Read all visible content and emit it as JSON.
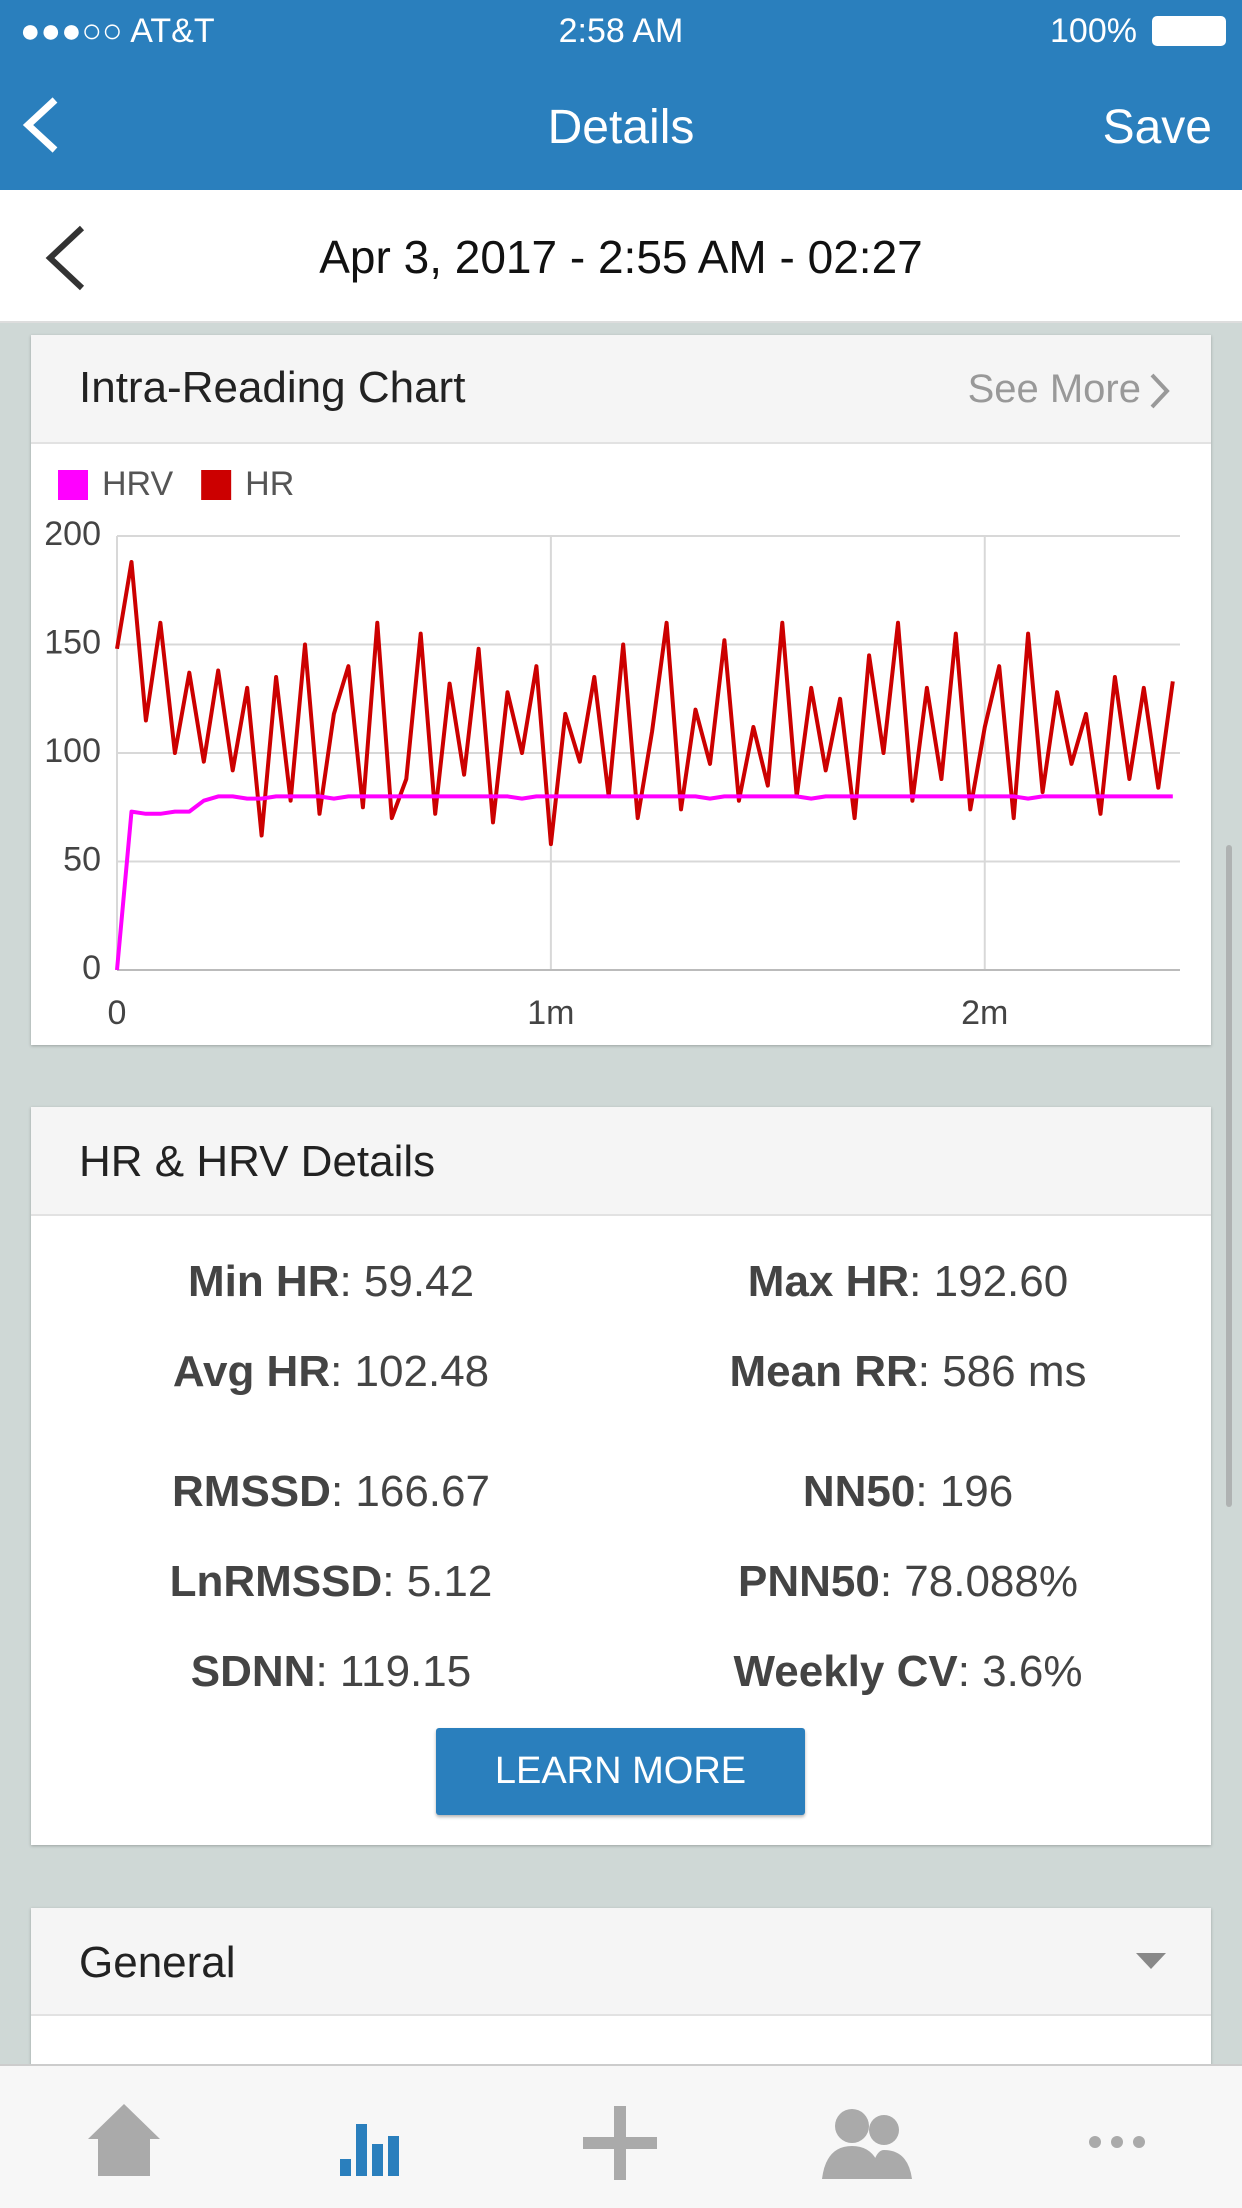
{
  "status_bar": {
    "carrier": "●●●○○ AT&T",
    "time": "2:58 AM",
    "battery": "100%"
  },
  "nav": {
    "title": "Details",
    "action": "Save"
  },
  "date_bar": {
    "text": "Apr 3, 2017 - 2:55 AM - 02:27"
  },
  "chart_card": {
    "link": "See More"
  },
  "chart_data": {
    "type": "line",
    "title": "Intra-Reading Chart",
    "x": [
      0,
      2,
      4,
      6,
      8,
      10,
      12,
      14,
      16,
      18,
      20,
      22,
      24,
      26,
      28,
      30,
      32,
      34,
      36,
      38,
      40,
      42,
      44,
      46,
      48,
      50,
      52,
      54,
      56,
      58,
      60,
      62,
      64,
      66,
      68,
      70,
      72,
      74,
      76,
      78,
      80,
      82,
      84,
      86,
      88,
      90,
      92,
      94,
      96,
      98,
      100,
      102,
      104,
      106,
      108,
      110,
      112,
      114,
      116,
      118,
      120,
      122,
      124,
      126,
      128,
      130,
      132,
      134,
      136,
      138,
      140,
      142,
      144,
      146
    ],
    "series": [
      {
        "name": "HRV",
        "color": "#ff00ff",
        "values": [
          0,
          73,
          72,
          72,
          73,
          73,
          78,
          80,
          80,
          79,
          79,
          80,
          80,
          80,
          80,
          79,
          80,
          80,
          80,
          80,
          80,
          80,
          80,
          80,
          80,
          80,
          80,
          80,
          79,
          80,
          80,
          80,
          80,
          80,
          80,
          80,
          80,
          80,
          80,
          80,
          80,
          79,
          80,
          80,
          80,
          80,
          80,
          80,
          79,
          80,
          80,
          80,
          80,
          80,
          80,
          80,
          80,
          80,
          80,
          80,
          80,
          80,
          80,
          79,
          80,
          80,
          80,
          80,
          80,
          80,
          80,
          80,
          80,
          80
        ]
      },
      {
        "name": "HR",
        "color": "#cc0000",
        "values": [
          148,
          188,
          115,
          160,
          100,
          137,
          96,
          138,
          92,
          130,
          62,
          135,
          78,
          150,
          72,
          118,
          140,
          75,
          160,
          70,
          88,
          155,
          72,
          132,
          90,
          148,
          68,
          128,
          100,
          140,
          58,
          118,
          96,
          135,
          80,
          150,
          70,
          110,
          160,
          74,
          120,
          95,
          152,
          78,
          112,
          85,
          160,
          80,
          130,
          92,
          125,
          70,
          145,
          100,
          160,
          78,
          130,
          88,
          155,
          74,
          112,
          140,
          70,
          155,
          82,
          128,
          95,
          118,
          72,
          135,
          88,
          130,
          84,
          133
        ]
      }
    ],
    "xlim": [
      0,
      147
    ],
    "xticks": [
      0,
      {
        "value": 60,
        "label": "1m"
      },
      {
        "value": 120,
        "label": "2m"
      }
    ],
    "ylim": [
      0,
      200
    ],
    "yticks": [
      0,
      50,
      100,
      150,
      200
    ],
    "grid": true
  },
  "details_card": {
    "title": "HR & HRV Details",
    "items": [
      {
        "label": "Min HR",
        "value": ": 59.42"
      },
      {
        "label": "Max HR",
        "value": ": 192.60"
      },
      {
        "label": "Avg HR",
        "value": ": 102.48"
      },
      {
        "label": "Mean RR",
        "value": ": 586 ms"
      },
      {
        "label": "RMSSD",
        "value": ": 166.67"
      },
      {
        "label": "NN50",
        "value": ": 196"
      },
      {
        "label": "LnRMSSD",
        "value": ": 5.12"
      },
      {
        "label": "PNN50",
        "value": ": 78.088%"
      },
      {
        "label": "SDNN",
        "value": ": 119.15"
      },
      {
        "label": "Weekly CV",
        "value": ": 3.6%"
      }
    ],
    "button": "LEARN MORE"
  },
  "general_card": {
    "title": "General"
  }
}
